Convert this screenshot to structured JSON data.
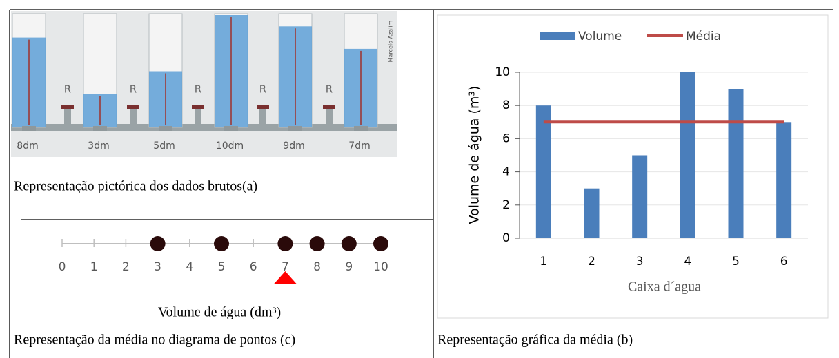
{
  "chart_data": [
    {
      "type": "pictogram",
      "caption": "Representação pictórica dos dados brutos(a)",
      "values": [
        8,
        3,
        5,
        10,
        9,
        7
      ],
      "value_labels": [
        "8dm",
        "3dm",
        "5dm",
        "10dm",
        "9dm",
        "7dm"
      ],
      "ylim": [
        0,
        10
      ],
      "valve_labels": [
        "R",
        "R",
        "R",
        "R",
        "R"
      ],
      "credit": "Marcelo Azalim",
      "color": "#5d9fd6"
    },
    {
      "type": "bar",
      "caption": "Representação gráfica da média (b)",
      "categories": [
        "1",
        "2",
        "3",
        "4",
        "5",
        "6"
      ],
      "series": [
        {
          "name": "Volume",
          "color": "#4a7ebb",
          "values": [
            8,
            3,
            5,
            10,
            9,
            7
          ]
        },
        {
          "name": "Média",
          "color": "#be4b48",
          "type": "line",
          "values": [
            7,
            7,
            7,
            7,
            7,
            7
          ]
        }
      ],
      "ylim": [
        0,
        10
      ],
      "yticks": [
        0,
        2,
        4,
        6,
        8,
        10
      ],
      "ylabel": "Volume de água (m³)",
      "xlabel": "Caixa d´agua",
      "grid": true,
      "legend": "top"
    },
    {
      "type": "dotplot",
      "caption": "Representação da média no diagrama de pontos (c)",
      "values": [
        3,
        5,
        7,
        8,
        9,
        10
      ],
      "mean": 7,
      "xlim": [
        0,
        10
      ],
      "xticks": [
        0,
        1,
        2,
        3,
        4,
        5,
        6,
        7,
        8,
        9,
        10
      ],
      "xlabel": "Volume de água (dm³)",
      "color": "#2a0a0a",
      "mean_color": "#ff0000"
    }
  ]
}
